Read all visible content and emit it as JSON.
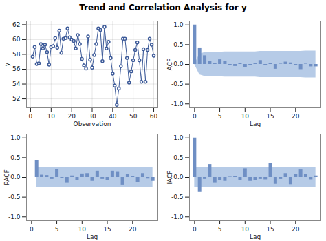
{
  "title": "Trend and Correlation Analysis for y",
  "chart_data": [
    {
      "type": "line",
      "x_label": "Observation",
      "y_label": "y",
      "x": [
        1,
        2,
        3,
        4,
        5,
        6,
        7,
        8,
        9,
        10,
        11,
        12,
        13,
        14,
        15,
        16,
        17,
        18,
        19,
        20,
        21,
        22,
        23,
        24,
        25,
        26,
        27,
        28,
        29,
        30,
        31,
        32,
        33,
        34,
        35,
        36,
        37,
        38,
        39,
        40,
        41,
        42,
        43,
        44,
        45,
        46,
        47,
        48,
        49,
        50,
        51,
        52,
        53,
        54,
        55,
        56,
        57,
        58,
        59,
        60
      ],
      "values": [
        57.7,
        59.0,
        56.7,
        56.8,
        59.4,
        58.8,
        59.3,
        58.3,
        56.6,
        59.0,
        59.1,
        60.2,
        58.9,
        61.2,
        58.2,
        60.1,
        60.2,
        61.5,
        60.3,
        60.0,
        59.8,
        58.8,
        60.6,
        59.4,
        57.4,
        56.5,
        56.1,
        60.4,
        57.3,
        56.2,
        57.9,
        59.4,
        61.5,
        61.3,
        57.1,
        61.7,
        58.8,
        59.7,
        57.5,
        55.4,
        53.8,
        51.2,
        53.4,
        56.4,
        60.1,
        60.1,
        57.5,
        54.2,
        55.7,
        57.2,
        58.6,
        59.6,
        57.2,
        54.3,
        58.7,
        54.3,
        58.6,
        60.1,
        59.3,
        57.8
      ],
      "xlim": [
        -2,
        62
      ],
      "xticks": [
        0,
        10,
        20,
        30,
        40,
        50,
        60
      ],
      "ylim": [
        50.8,
        62.5
      ],
      "yticks": [
        52,
        54,
        56,
        58,
        60,
        62
      ],
      "grid": true,
      "color": "#3b5998",
      "marker": "circle"
    },
    {
      "type": "bar",
      "x_label": "Lag",
      "y_label": "ACF",
      "x": [
        0,
        1,
        2,
        3,
        4,
        5,
        6,
        7,
        8,
        9,
        10,
        11,
        12,
        13,
        14,
        15,
        16,
        17,
        18,
        19,
        20,
        21,
        22,
        23,
        24
      ],
      "values": [
        1.0,
        0.42,
        0.22,
        0.08,
        0.03,
        0.12,
        0.07,
        -0.02,
        -0.05,
        0.03,
        -0.08,
        -0.03,
        0.02,
        0.1,
        -0.02,
        0.03,
        -0.12,
        0.01,
        0.06,
        0.04,
        -0.03,
        -0.13,
        0.01,
        -0.06,
        -0.06
      ],
      "upper_limits": [
        0.0,
        0.26,
        0.3,
        0.31,
        0.31,
        0.31,
        0.32,
        0.32,
        0.32,
        0.32,
        0.32,
        0.32,
        0.32,
        0.33,
        0.33,
        0.33,
        0.33,
        0.33,
        0.33,
        0.33,
        0.33,
        0.33,
        0.34,
        0.34,
        0.34
      ],
      "lower_limits": [
        0.0,
        -0.26,
        -0.3,
        -0.31,
        -0.31,
        -0.31,
        -0.32,
        -0.32,
        -0.32,
        -0.32,
        -0.32,
        -0.32,
        -0.32,
        -0.33,
        -0.33,
        -0.33,
        -0.33,
        -0.33,
        -0.33,
        -0.33,
        -0.33,
        -0.33,
        -0.34,
        -0.34,
        -0.34
      ],
      "xlim": [
        -1,
        25
      ],
      "xticks": [
        0,
        5,
        10,
        15,
        20
      ],
      "ylim": [
        -1.1,
        1.1
      ],
      "yticks": [
        {
          "value": -1,
          "label": "-1.0"
        },
        -0.5,
        {
          "value": 0,
          "label": "0.0"
        },
        0.5,
        {
          "value": 1,
          "label": "1.0"
        }
      ],
      "color": "#6f8fc4"
    },
    {
      "type": "bar",
      "x_label": "Lag",
      "y_label": "PACF",
      "x": [
        1,
        2,
        3,
        4,
        5,
        6,
        7,
        8,
        9,
        10,
        11,
        12,
        13,
        14,
        15,
        16,
        17,
        18,
        19,
        20,
        21,
        22,
        23,
        24
      ],
      "values": [
        0.42,
        0.06,
        0.05,
        -0.05,
        0.21,
        -0.03,
        -0.15,
        0.04,
        -0.08,
        0.09,
        0.1,
        -0.1,
        0.16,
        -0.05,
        -0.07,
        0.16,
        0.13,
        -0.19,
        0.08,
        0.02,
        -0.14,
        0.1,
        -0.04,
        -0.1
      ],
      "upper_limits": [
        0.26,
        0.26,
        0.26,
        0.26,
        0.26,
        0.26,
        0.26,
        0.26,
        0.26,
        0.26,
        0.26,
        0.26,
        0.26,
        0.26,
        0.26,
        0.26,
        0.26,
        0.26,
        0.26,
        0.26,
        0.26,
        0.26,
        0.26,
        0.26
      ],
      "lower_limits": [
        -0.26,
        -0.26,
        -0.26,
        -0.26,
        -0.26,
        -0.26,
        -0.26,
        -0.26,
        -0.26,
        -0.26,
        -0.26,
        -0.26,
        -0.26,
        -0.26,
        -0.26,
        -0.26,
        -0.26,
        -0.26,
        -0.26,
        -0.26,
        -0.26,
        -0.26,
        -0.26,
        -0.26
      ],
      "xlim": [
        -1,
        25
      ],
      "xticks": [
        0,
        5,
        10,
        15,
        20
      ],
      "ylim": [
        -1.1,
        1.1
      ],
      "yticks": [
        {
          "value": -1,
          "label": "-1.0"
        },
        -0.5,
        {
          "value": 0,
          "label": "0.0"
        },
        0.5,
        {
          "value": 1,
          "label": "1.0"
        }
      ],
      "color": "#6f8fc4"
    },
    {
      "type": "bar",
      "x_label": "Lag",
      "y_label": "IACF",
      "x": [
        0,
        1,
        2,
        3,
        4,
        5,
        6,
        7,
        8,
        9,
        10,
        11,
        12,
        13,
        14,
        15,
        16,
        17,
        18,
        19,
        20,
        21,
        22,
        23,
        24
      ],
      "values": [
        1.0,
        -0.38,
        -0.05,
        0.33,
        -0.15,
        -0.08,
        -0.1,
        0.01,
        0.03,
        -0.08,
        0.22,
        -0.1,
        -0.07,
        -0.05,
        -0.06,
        0.36,
        -0.17,
        -0.05,
        0.1,
        -0.18,
        0.07,
        0.19,
        0.08,
        -0.06,
        0.04
      ],
      "upper_limits": [
        0.26,
        0.26,
        0.26,
        0.26,
        0.26,
        0.26,
        0.26,
        0.26,
        0.26,
        0.26,
        0.26,
        0.26,
        0.26,
        0.26,
        0.26,
        0.26,
        0.26,
        0.26,
        0.26,
        0.26,
        0.26,
        0.26,
        0.26,
        0.26,
        0.26
      ],
      "lower_limits": [
        -0.26,
        -0.26,
        -0.26,
        -0.26,
        -0.26,
        -0.26,
        -0.26,
        -0.26,
        -0.26,
        -0.26,
        -0.26,
        -0.26,
        -0.26,
        -0.26,
        -0.26,
        -0.26,
        -0.26,
        -0.26,
        -0.26,
        -0.26,
        -0.26,
        -0.26,
        -0.26,
        -0.26,
        -0.26
      ],
      "xlim": [
        -1,
        25
      ],
      "xticks": [
        0,
        5,
        10,
        15,
        20
      ],
      "ylim": [
        -1.1,
        1.1
      ],
      "yticks": [
        {
          "value": -1,
          "label": "-1.0"
        },
        -0.5,
        {
          "value": 0,
          "label": "0.0"
        },
        0.5,
        {
          "value": 1,
          "label": "1.0"
        }
      ],
      "color": "#6f8fc4"
    }
  ]
}
